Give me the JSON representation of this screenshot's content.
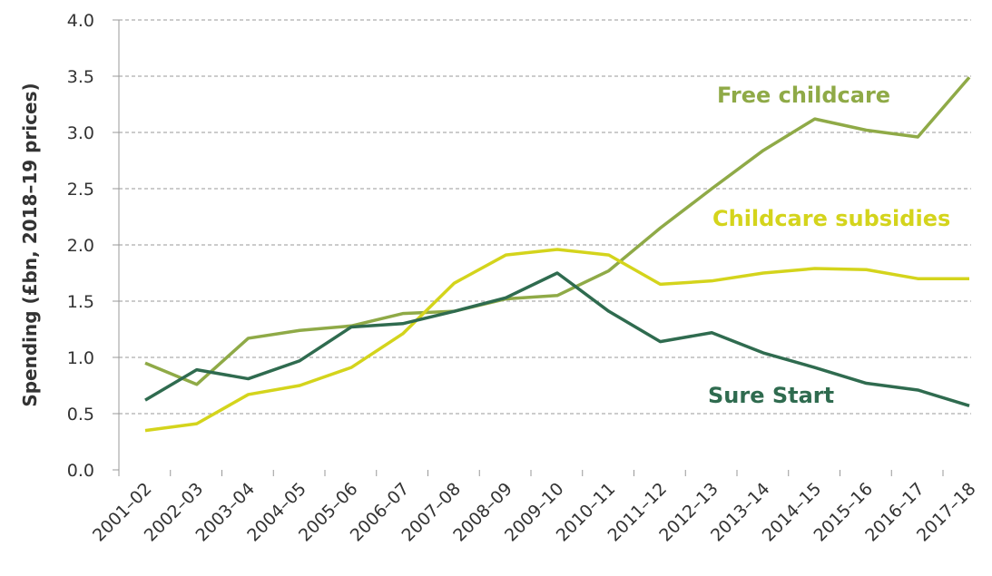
{
  "chart_data": {
    "type": "line",
    "y_label": "Spending (£bn, 2018–19 prices)",
    "categories": [
      "2001–02",
      "2002–03",
      "2003–04",
      "2004–05",
      "2005–06",
      "2006–07",
      "2007–08",
      "2008–09",
      "2009–10",
      "2010–11",
      "2011–12",
      "2012–13",
      "2013–14",
      "2014–15",
      "2015–16",
      "2016–17",
      "2017–18"
    ],
    "series": [
      {
        "name": "Free childcare",
        "color": "#8faa47",
        "values": [
          0.95,
          0.76,
          1.17,
          1.24,
          1.28,
          1.39,
          1.41,
          1.52,
          1.55,
          1.77,
          2.15,
          2.5,
          2.84,
          3.12,
          3.02,
          2.96,
          3.49
        ]
      },
      {
        "name": "Childcare subsidies",
        "color": "#d4d41c",
        "values": [
          0.35,
          0.41,
          0.67,
          0.75,
          0.91,
          1.21,
          1.66,
          1.91,
          1.96,
          1.91,
          1.65,
          1.68,
          1.75,
          1.79,
          1.78,
          1.7,
          1.7
        ]
      },
      {
        "name": "Sure Start",
        "color": "#2f6b4f",
        "values": [
          0.62,
          0.89,
          0.81,
          0.97,
          1.27,
          1.3,
          1.41,
          1.53,
          1.75,
          1.41,
          1.14,
          1.22,
          1.04,
          0.91,
          0.77,
          0.71,
          0.57
        ]
      }
    ],
    "ylim": [
      0,
      4
    ],
    "yticks": [
      {
        "value": 0,
        "label": "0.0"
      },
      0.5,
      {
        "value": 1,
        "label": "1.0"
      },
      1.5,
      {
        "value": 2,
        "label": "2.0"
      },
      2.5,
      {
        "value": 3,
        "label": "3.0"
      },
      3.5,
      {
        "value": 4,
        "label": "4.0"
      }
    ],
    "grid": true
  }
}
